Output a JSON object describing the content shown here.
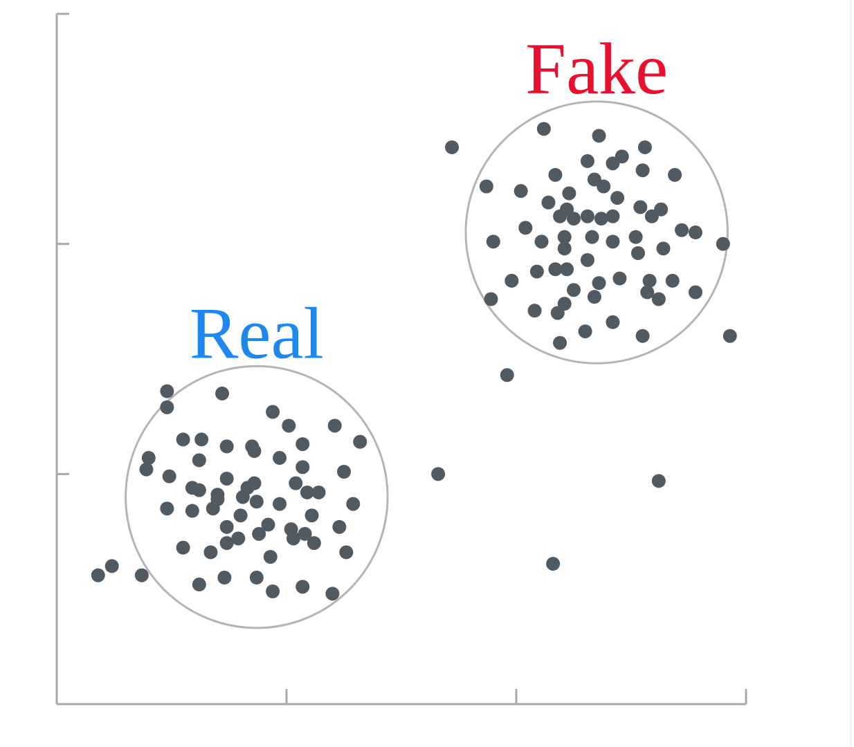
{
  "chart_data": {
    "type": "scatter",
    "title": "",
    "xlabel": "",
    "ylabel": "",
    "xlim": [
      0,
      3
    ],
    "ylim": [
      0,
      3
    ],
    "x_ticks": [
      0,
      1,
      2,
      3
    ],
    "y_ticks": [
      0,
      1,
      2,
      3
    ],
    "tick_labels_shown": false,
    "grid": false,
    "point_color": "#505a63",
    "clusters": [
      {
        "label": "Real",
        "label_color": "#1e88f0",
        "center": [
          0.87,
          0.9
        ],
        "radius": 0.57,
        "circle_color": "#b4b4b8"
      },
      {
        "label": "Fake",
        "label_color": "#e8102e",
        "center": [
          2.35,
          2.05
        ],
        "radius": 0.57,
        "circle_color": "#b4b4b8"
      }
    ],
    "points": [
      [
        0.18,
        0.56
      ],
      [
        0.48,
        1.36
      ],
      [
        0.72,
        1.35
      ],
      [
        0.48,
        1.29
      ],
      [
        0.94,
        1.27
      ],
      [
        1.01,
        1.21
      ],
      [
        1.21,
        1.21
      ],
      [
        0.55,
        1.15
      ],
      [
        0.63,
        1.15
      ],
      [
        1.32,
        1.14
      ],
      [
        1.07,
        1.13
      ],
      [
        0.74,
        1.12
      ],
      [
        0.85,
        1.12
      ],
      [
        0.86,
        1.1
      ],
      [
        0.97,
        1.07
      ],
      [
        0.4,
        1.07
      ],
      [
        0.62,
        1.06
      ],
      [
        1.07,
        1.03
      ],
      [
        0.39,
        1.02
      ],
      [
        1.25,
        1.01
      ],
      [
        0.86,
        0.96
      ],
      [
        0.74,
        0.98
      ],
      [
        1.04,
        0.96
      ],
      [
        0.59,
        0.94
      ],
      [
        0.7,
        0.91
      ],
      [
        0.83,
        0.94
      ],
      [
        1.09,
        0.92
      ],
      [
        1.14,
        0.92
      ],
      [
        0.7,
        0.89
      ],
      [
        0.62,
        0.93
      ],
      [
        0.87,
        0.88
      ],
      [
        0.97,
        0.87
      ],
      [
        0.81,
        0.9
      ],
      [
        1.29,
        0.87
      ],
      [
        0.48,
        0.85
      ],
      [
        0.68,
        0.85
      ],
      [
        0.59,
        0.84
      ],
      [
        1.11,
        0.82
      ],
      [
        0.8,
        0.82
      ],
      [
        0.92,
        0.78
      ],
      [
        1.02,
        0.76
      ],
      [
        1.23,
        0.77
      ],
      [
        0.74,
        0.77
      ],
      [
        0.88,
        0.74
      ],
      [
        1.08,
        0.74
      ],
      [
        0.74,
        0.7
      ],
      [
        1.12,
        0.7
      ],
      [
        0.55,
        0.68
      ],
      [
        1.03,
        0.72
      ],
      [
        0.79,
        0.72
      ],
      [
        0.67,
        0.66
      ],
      [
        0.93,
        0.64
      ],
      [
        1.26,
        0.66
      ],
      [
        0.24,
        0.6
      ],
      [
        0.37,
        0.56
      ],
      [
        0.73,
        0.55
      ],
      [
        0.87,
        0.55
      ],
      [
        0.62,
        0.52
      ],
      [
        1.07,
        0.51
      ],
      [
        1.2,
        0.48
      ],
      [
        0.94,
        0.49
      ],
      [
        0.49,
        0.99
      ],
      [
        1.72,
        2.42
      ],
      [
        2.12,
        2.5
      ],
      [
        2.36,
        2.47
      ],
      [
        2.56,
        2.42
      ],
      [
        2.31,
        2.36
      ],
      [
        2.42,
        2.35
      ],
      [
        2.46,
        2.38
      ],
      [
        2.55,
        2.32
      ],
      [
        2.17,
        2.3
      ],
      [
        2.02,
        2.23
      ],
      [
        1.87,
        2.25
      ],
      [
        2.34,
        2.28
      ],
      [
        2.38,
        2.25
      ],
      [
        2.69,
        2.3
      ],
      [
        2.23,
        2.22
      ],
      [
        2.44,
        2.2
      ],
      [
        2.14,
        2.18
      ],
      [
        2.22,
        2.15
      ],
      [
        2.54,
        2.16
      ],
      [
        2.63,
        2.15
      ],
      [
        2.31,
        2.12
      ],
      [
        2.42,
        2.12
      ],
      [
        2.19,
        2.12
      ],
      [
        2.25,
        2.11
      ],
      [
        2.37,
        2.11
      ],
      [
        2.59,
        2.12
      ],
      [
        2.04,
        2.07
      ],
      [
        2.72,
        2.06
      ],
      [
        2.21,
        2.03
      ],
      [
        2.52,
        2.03
      ],
      [
        2.11,
        2.01
      ],
      [
        2.33,
        2.03
      ],
      [
        2.42,
        2.01
      ],
      [
        1.9,
        2.01
      ],
      [
        2.64,
        1.98
      ],
      [
        2.21,
        1.98
      ],
      [
        2.53,
        1.96
      ],
      [
        2.31,
        1.93
      ],
      [
        2.09,
        1.88
      ],
      [
        2.17,
        1.89
      ],
      [
        2.22,
        1.89
      ],
      [
        2.45,
        1.85
      ],
      [
        1.98,
        1.84
      ],
      [
        2.58,
        1.84
      ],
      [
        2.68,
        1.84
      ],
      [
        2.36,
        1.83
      ],
      [
        2.25,
        1.8
      ],
      [
        2.57,
        1.79
      ],
      [
        2.78,
        1.79
      ],
      [
        2.62,
        1.76
      ],
      [
        1.89,
        1.76
      ],
      [
        2.34,
        1.77
      ],
      [
        2.18,
        1.7
      ],
      [
        2.21,
        1.74
      ],
      [
        2.08,
        1.71
      ],
      [
        2.42,
        1.66
      ],
      [
        2.3,
        1.62
      ],
      [
        2.55,
        1.6
      ],
      [
        2.19,
        1.57
      ],
      [
        2.93,
        1.6
      ],
      [
        1.96,
        1.43
      ],
      [
        2.78,
        2.05
      ],
      [
        2.9,
        2.0
      ],
      [
        1.66,
        1.0
      ],
      [
        2.16,
        0.61
      ],
      [
        2.62,
        0.97
      ]
    ]
  }
}
